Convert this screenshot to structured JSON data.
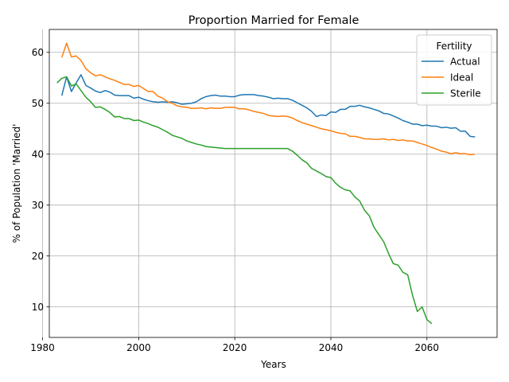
{
  "chart_data": {
    "type": "line",
    "title": "Proportion Married for Female",
    "xlabel": "Years",
    "ylabel": "% of Population 'Married'",
    "xlim": [
      1981.4,
      2074.6
    ],
    "ylim": [
      4.0,
      64.5
    ],
    "xticks": [
      1980,
      2000,
      2020,
      2040,
      2060
    ],
    "yticks": [
      10,
      20,
      30,
      40,
      50,
      60
    ],
    "grid": true,
    "legend": {
      "title": "Fertility",
      "placement": "upper right"
    },
    "series": [
      {
        "name": "Actual",
        "color": "#1f77b4",
        "x": [
          1984,
          1985,
          1986,
          1987,
          1988,
          1989,
          1990,
          1991,
          1992,
          1993,
          1994,
          1995,
          1996,
          1997,
          1998,
          1999,
          2000,
          2001,
          2002,
          2003,
          2004,
          2005,
          2006,
          2007,
          2008,
          2009,
          2010,
          2011,
          2012,
          2013,
          2014,
          2015,
          2016,
          2017,
          2018,
          2019,
          2020,
          2021,
          2022,
          2023,
          2024,
          2025,
          2026,
          2027,
          2028,
          2029,
          2030,
          2031,
          2032,
          2033,
          2034,
          2035,
          2036,
          2037,
          2038,
          2039,
          2040,
          2041,
          2042,
          2043,
          2044,
          2045,
          2046,
          2047,
          2048,
          2049,
          2050,
          2051,
          2052,
          2053,
          2054,
          2055,
          2056,
          2057,
          2058,
          2059,
          2060,
          2061,
          2062,
          2063,
          2064,
          2065,
          2066,
          2067,
          2068,
          2069,
          2070
        ],
        "values": [
          51.5,
          55.2,
          52.3,
          54.0,
          55.6,
          53.5,
          53.0,
          52.4,
          52.1,
          52.5,
          52.2,
          51.6,
          51.5,
          51.5,
          51.5,
          51.0,
          51.2,
          50.8,
          50.5,
          50.3,
          50.2,
          50.3,
          50.2,
          50.3,
          50.1,
          49.8,
          49.9,
          50.0,
          50.3,
          50.9,
          51.3,
          51.5,
          51.6,
          51.4,
          51.4,
          51.3,
          51.3,
          51.6,
          51.7,
          51.7,
          51.7,
          51.5,
          51.4,
          51.2,
          50.9,
          51.0,
          50.9,
          50.9,
          50.6,
          50.1,
          49.6,
          49.1,
          48.4,
          47.4,
          47.7,
          47.6,
          48.3,
          48.2,
          48.8,
          48.8,
          49.4,
          49.4,
          49.6,
          49.3,
          49.1,
          48.8,
          48.5,
          48.0,
          47.9,
          47.5,
          47.1,
          46.6,
          46.3,
          45.9,
          45.9,
          45.6,
          45.7,
          45.5,
          45.5,
          45.2,
          45.3,
          45.1,
          45.2,
          44.5,
          44.5,
          43.5,
          43.4
        ]
      },
      {
        "name": "Ideal",
        "color": "#ff7f0e",
        "x": [
          1984,
          1985,
          1986,
          1987,
          1988,
          1989,
          1990,
          1991,
          1992,
          1993,
          1994,
          1995,
          1996,
          1997,
          1998,
          1999,
          2000,
          2001,
          2002,
          2003,
          2004,
          2005,
          2006,
          2007,
          2008,
          2009,
          2010,
          2011,
          2012,
          2013,
          2014,
          2015,
          2016,
          2017,
          2018,
          2019,
          2020,
          2021,
          2022,
          2023,
          2024,
          2025,
          2026,
          2027,
          2028,
          2029,
          2030,
          2031,
          2032,
          2033,
          2034,
          2035,
          2036,
          2037,
          2038,
          2039,
          2040,
          2041,
          2042,
          2043,
          2044,
          2045,
          2046,
          2047,
          2048,
          2049,
          2050,
          2051,
          2052,
          2053,
          2054,
          2055,
          2056,
          2057,
          2058,
          2059,
          2060,
          2061,
          2062,
          2063,
          2064,
          2065,
          2066,
          2067,
          2068,
          2069,
          2070
        ],
        "values": [
          59.0,
          61.8,
          59.1,
          59.3,
          58.4,
          56.8,
          56.0,
          55.4,
          55.6,
          55.2,
          54.8,
          54.5,
          54.1,
          53.7,
          53.7,
          53.3,
          53.5,
          52.9,
          52.3,
          52.3,
          51.4,
          51.0,
          50.3,
          50.0,
          49.5,
          49.3,
          49.2,
          49.0,
          49.0,
          49.1,
          48.9,
          49.1,
          49.0,
          49.0,
          49.2,
          49.2,
          49.2,
          48.9,
          48.9,
          48.7,
          48.4,
          48.2,
          48.0,
          47.6,
          47.5,
          47.4,
          47.5,
          47.4,
          47.1,
          46.6,
          46.2,
          45.9,
          45.6,
          45.3,
          45.0,
          44.8,
          44.6,
          44.3,
          44.1,
          44.0,
          43.5,
          43.5,
          43.3,
          43.0,
          43.0,
          42.9,
          42.9,
          43.0,
          42.8,
          42.9,
          42.7,
          42.8,
          42.6,
          42.6,
          42.3,
          42.0,
          41.7,
          41.3,
          41.0,
          40.6,
          40.4,
          40.1,
          40.3,
          40.1,
          40.1,
          39.9,
          40.0
        ]
      },
      {
        "name": "Sterile",
        "color": "#2ca02c",
        "x": [
          1983,
          1984,
          1985,
          1986,
          1987,
          1988,
          1989,
          1990,
          1991,
          1992,
          1993,
          1994,
          1995,
          1996,
          1997,
          1998,
          1999,
          2000,
          2001,
          2002,
          2003,
          2004,
          2005,
          2006,
          2007,
          2008,
          2009,
          2010,
          2011,
          2012,
          2013,
          2014,
          2015,
          2016,
          2017,
          2018,
          2019,
          2020,
          2021,
          2022,
          2023,
          2024,
          2025,
          2026,
          2027,
          2028,
          2029,
          2030,
          2031,
          2032,
          2033,
          2034,
          2035,
          2036,
          2037,
          2038,
          2039,
          2040,
          2041,
          2042,
          2043,
          2044,
          2045,
          2046,
          2047,
          2048,
          2049,
          2050,
          2051,
          2052,
          2053,
          2054,
          2055,
          2056,
          2057,
          2058,
          2059,
          2060,
          2061
        ],
        "values": [
          54.0,
          54.9,
          55.2,
          53.4,
          53.8,
          52.5,
          51.2,
          50.3,
          49.2,
          49.3,
          48.8,
          48.2,
          47.3,
          47.4,
          47.0,
          47.0,
          46.6,
          46.7,
          46.3,
          46.0,
          45.6,
          45.3,
          44.8,
          44.3,
          43.7,
          43.4,
          43.1,
          42.6,
          42.3,
          42.0,
          41.8,
          41.5,
          41.4,
          41.3,
          41.2,
          41.1,
          41.1,
          41.1,
          41.1,
          41.1,
          41.1,
          41.1,
          41.1,
          41.1,
          41.1,
          41.1,
          41.1,
          41.1,
          41.1,
          40.6,
          39.8,
          38.9,
          38.3,
          37.2,
          36.7,
          36.2,
          35.6,
          35.4,
          34.3,
          33.5,
          33.0,
          32.8,
          31.6,
          30.8,
          29.0,
          27.9,
          25.6,
          24.2,
          22.8,
          20.5,
          18.5,
          18.2,
          16.8,
          16.3,
          12.3,
          9.1,
          10.0,
          7.5,
          6.7
        ]
      }
    ]
  }
}
